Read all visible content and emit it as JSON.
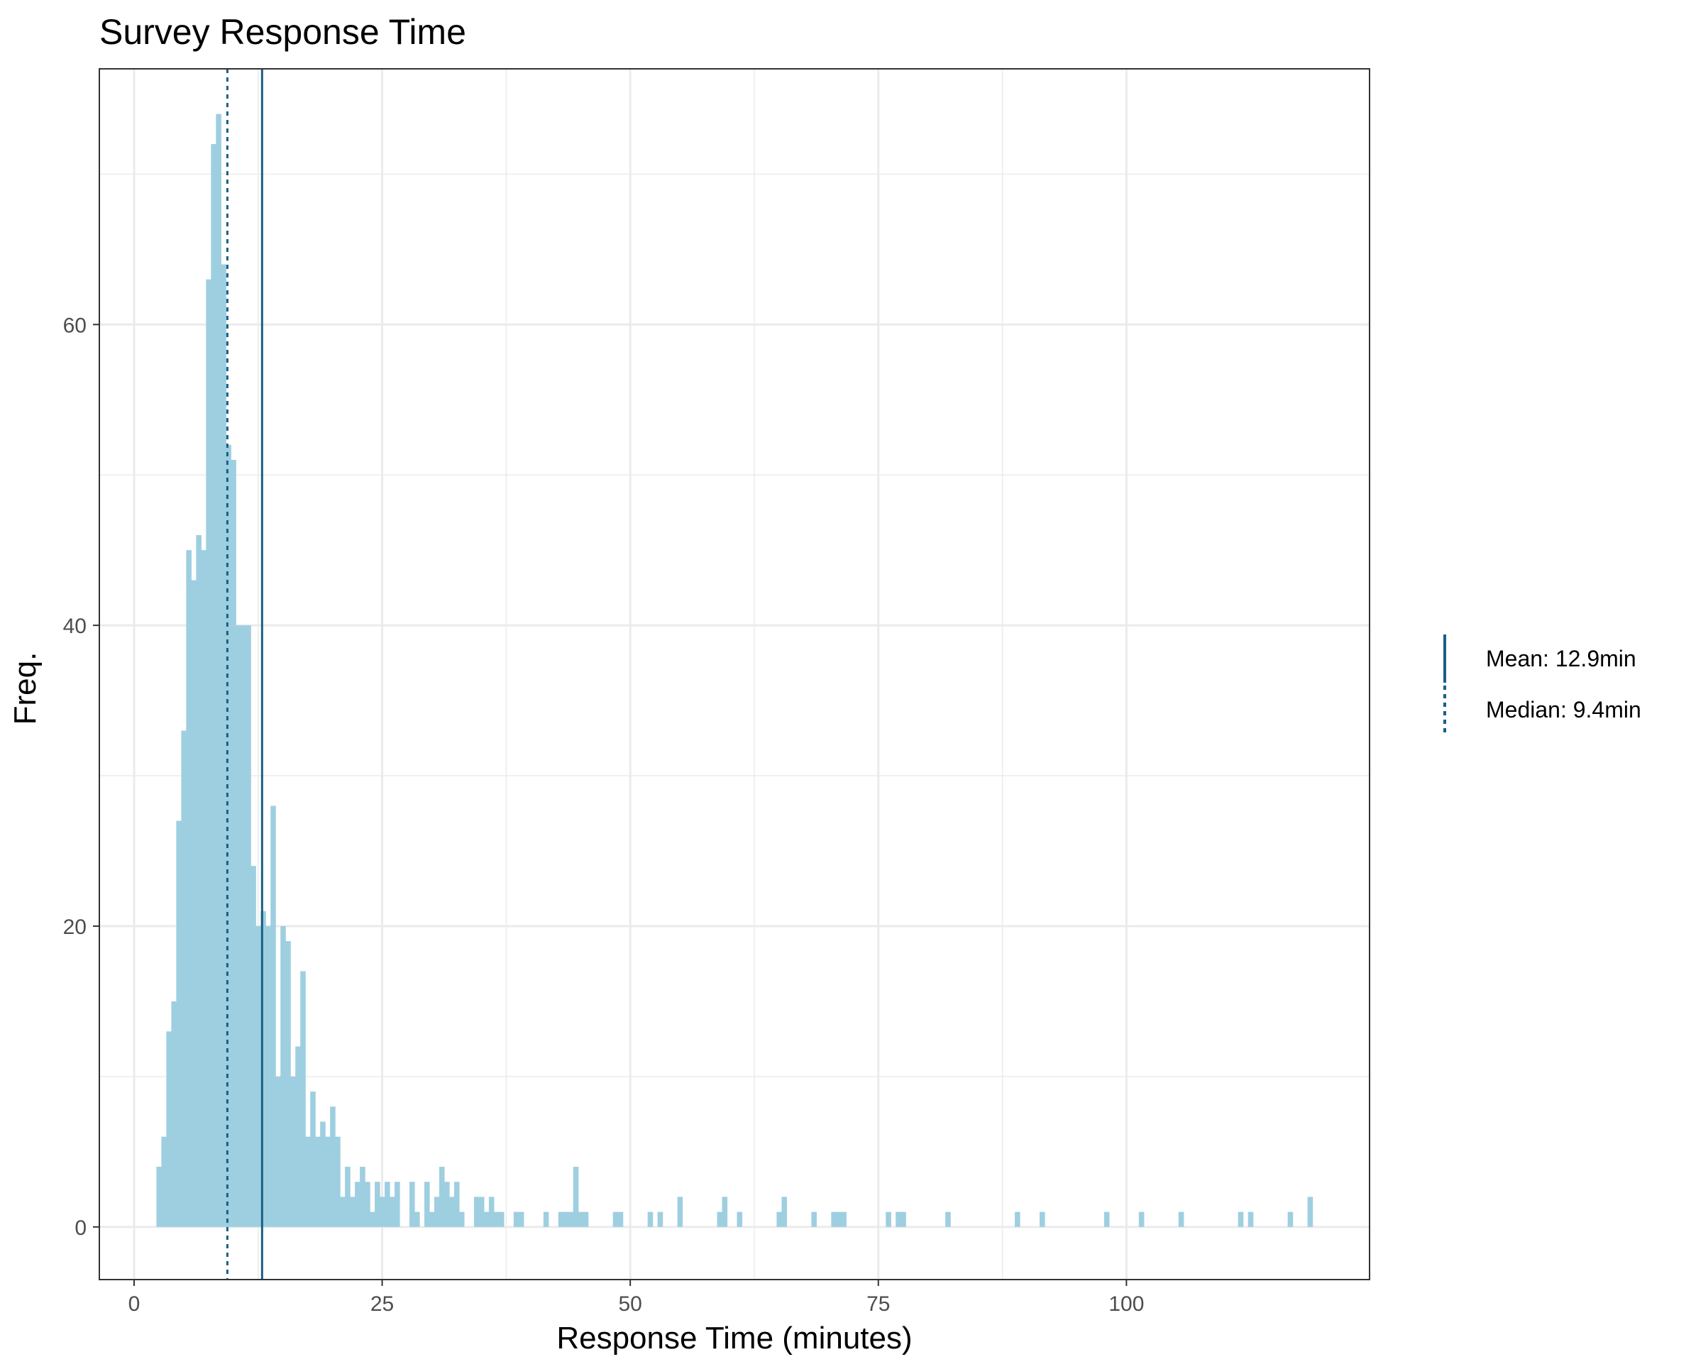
{
  "colors": {
    "bar_fill": "#9ecfe0",
    "reference_line": "#1a5f86",
    "grid": "#ebebeb",
    "panel_border": "#333333",
    "tick_text": "#4d4d4d"
  },
  "chart_data": {
    "type": "histogram",
    "title": "Survey Response Time",
    "xlabel": "Response Time (minutes)",
    "ylabel": "Freq.",
    "xlim": [
      -3.5,
      124.5
    ],
    "ylim": [
      -3.5,
      77
    ],
    "x_ticks": [
      0,
      25,
      50,
      75,
      100
    ],
    "y_ticks": [
      0,
      20,
      40,
      60
    ],
    "grid": true,
    "bin_width": 0.5,
    "bins": [
      [
        2.5,
        4
      ],
      [
        3.0,
        6
      ],
      [
        3.5,
        13
      ],
      [
        4.0,
        15
      ],
      [
        4.5,
        27
      ],
      [
        5.0,
        33
      ],
      [
        5.5,
        45
      ],
      [
        6.0,
        43
      ],
      [
        6.5,
        46
      ],
      [
        7.0,
        45
      ],
      [
        7.5,
        63
      ],
      [
        8.0,
        72
      ],
      [
        8.5,
        74
      ],
      [
        9.0,
        64
      ],
      [
        9.5,
        52
      ],
      [
        10.0,
        51
      ],
      [
        10.5,
        40
      ],
      [
        11.0,
        40
      ],
      [
        11.5,
        40
      ],
      [
        12.0,
        24
      ],
      [
        12.5,
        20
      ],
      [
        13.0,
        21
      ],
      [
        13.5,
        20
      ],
      [
        14.0,
        28
      ],
      [
        14.5,
        10
      ],
      [
        15.0,
        20
      ],
      [
        15.5,
        19
      ],
      [
        16.0,
        10
      ],
      [
        16.5,
        12
      ],
      [
        17.0,
        17
      ],
      [
        17.5,
        6
      ],
      [
        18.0,
        9
      ],
      [
        18.5,
        6
      ],
      [
        19.0,
        7
      ],
      [
        19.5,
        6
      ],
      [
        20.0,
        8
      ],
      [
        20.5,
        6
      ],
      [
        21.0,
        2
      ],
      [
        21.5,
        4
      ],
      [
        22.0,
        2
      ],
      [
        22.5,
        3
      ],
      [
        23.0,
        4
      ],
      [
        23.5,
        3
      ],
      [
        24.0,
        1
      ],
      [
        24.5,
        3
      ],
      [
        25.0,
        2
      ],
      [
        25.5,
        3
      ],
      [
        26.0,
        2
      ],
      [
        26.5,
        3
      ],
      [
        28.0,
        3
      ],
      [
        28.5,
        1
      ],
      [
        29.5,
        3
      ],
      [
        30.0,
        1
      ],
      [
        30.5,
        2
      ],
      [
        31.0,
        4
      ],
      [
        31.5,
        3
      ],
      [
        32.0,
        2
      ],
      [
        32.5,
        3
      ],
      [
        33.0,
        1
      ],
      [
        34.5,
        2
      ],
      [
        35.0,
        2
      ],
      [
        35.5,
        1
      ],
      [
        36.0,
        2
      ],
      [
        36.5,
        1
      ],
      [
        37.0,
        1
      ],
      [
        38.5,
        1
      ],
      [
        39.0,
        1
      ],
      [
        41.5,
        1
      ],
      [
        43.0,
        1
      ],
      [
        43.5,
        1
      ],
      [
        44.0,
        1
      ],
      [
        44.5,
        4
      ],
      [
        45.0,
        1
      ],
      [
        45.5,
        1
      ],
      [
        48.5,
        1
      ],
      [
        49.0,
        1
      ],
      [
        52.0,
        1
      ],
      [
        53.0,
        1
      ],
      [
        55.0,
        2
      ],
      [
        59.0,
        1
      ],
      [
        59.5,
        2
      ],
      [
        61.0,
        1
      ],
      [
        65.0,
        1
      ],
      [
        65.5,
        2
      ],
      [
        68.5,
        1
      ],
      [
        70.5,
        1
      ],
      [
        71.0,
        1
      ],
      [
        71.5,
        1
      ],
      [
        76.0,
        1
      ],
      [
        77.0,
        1
      ],
      [
        77.5,
        1
      ],
      [
        82.0,
        1
      ],
      [
        89.0,
        1
      ],
      [
        91.5,
        1
      ],
      [
        98.0,
        1
      ],
      [
        101.5,
        1
      ],
      [
        105.5,
        1
      ],
      [
        111.5,
        1
      ],
      [
        112.5,
        1
      ],
      [
        116.5,
        1
      ],
      [
        118.5,
        2
      ]
    ],
    "reference_lines": [
      {
        "label": "Mean: 12.9min",
        "value": 12.9,
        "style": "solid"
      },
      {
        "label": "Median: 9.4min",
        "value": 9.4,
        "style": "dotted"
      }
    ],
    "legend_position": "right"
  }
}
